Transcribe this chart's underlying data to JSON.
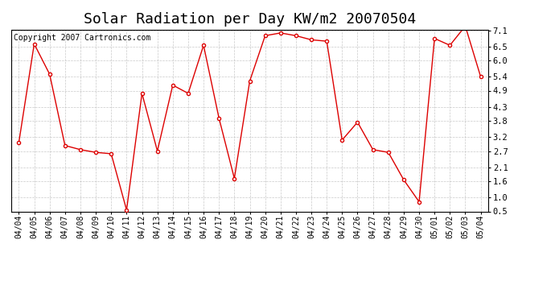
{
  "title": "Solar Radiation per Day KW/m2 20070504",
  "copyright": "Copyright 2007 Cartronics.com",
  "dates": [
    "04/04",
    "04/05",
    "04/06",
    "04/07",
    "04/08",
    "04/09",
    "04/10",
    "04/11",
    "04/12",
    "04/13",
    "04/14",
    "04/15",
    "04/16",
    "04/17",
    "04/18",
    "04/19",
    "04/20",
    "04/21",
    "04/22",
    "04/23",
    "04/24",
    "04/25",
    "04/26",
    "04/27",
    "04/28",
    "04/29",
    "04/30",
    "05/01",
    "05/02",
    "05/03",
    "05/04"
  ],
  "values": [
    3.0,
    6.6,
    5.5,
    2.9,
    2.75,
    2.65,
    2.6,
    0.55,
    4.8,
    2.7,
    5.1,
    4.8,
    6.55,
    3.9,
    1.7,
    5.25,
    6.9,
    7.0,
    6.9,
    6.75,
    6.7,
    3.1,
    3.75,
    2.75,
    2.65,
    1.65,
    0.85,
    6.8,
    6.55,
    7.25,
    5.4
  ],
  "line_color": "#dd0000",
  "marker": "o",
  "marker_size": 3,
  "background_color": "#ffffff",
  "grid_color": "#bbbbbb",
  "ylim_min": 0.5,
  "ylim_max": 7.1,
  "yticks": [
    0.5,
    1.0,
    1.6,
    2.1,
    2.7,
    3.2,
    3.8,
    4.3,
    4.9,
    5.4,
    6.0,
    6.5,
    7.1
  ],
  "title_fontsize": 13,
  "copyright_fontsize": 7,
  "tick_fontsize": 7,
  "ytick_fontsize": 7.5
}
